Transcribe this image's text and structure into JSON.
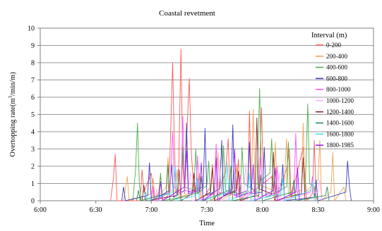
{
  "chart_data": {
    "type": "line",
    "title": "Coastal revetment",
    "xlabel": "Time",
    "ylabel": "Overtopping rate(m³/min/m)",
    "ylabel_parts": {
      "pre": "Overtopping rate(m",
      "sup": "3",
      "post": "/min/m)"
    },
    "xlim_minutes": [
      0,
      180
    ],
    "x_ticks": [
      "6:00",
      "6:30",
      "7:00",
      "7:30",
      "8:00",
      "8:30",
      "9:00"
    ],
    "ylim": [
      0,
      10
    ],
    "y_ticks": [
      "0",
      "1",
      "2",
      "3",
      "4",
      "5",
      "6",
      "7",
      "8",
      "9",
      "10"
    ],
    "grid": "horizontal",
    "legend_title": "Interval (m)",
    "legend_position": "right",
    "series": [
      {
        "name": "0-200",
        "color": "#ff5a5a",
        "points": [
          [
            38,
            0
          ],
          [
            39.5,
            1.3
          ],
          [
            40.5,
            2.7
          ],
          [
            41.5,
            0
          ],
          [
            54,
            0
          ],
          [
            55,
            1.8
          ],
          [
            56,
            0.5
          ],
          [
            60,
            1.6
          ],
          [
            61.5,
            0
          ],
          [
            64,
            0.5
          ],
          [
            65,
            1.5
          ],
          [
            66,
            0
          ],
          [
            69,
            0.3
          ],
          [
            70,
            2.5
          ],
          [
            71.5,
            8.0
          ],
          [
            72.5,
            3
          ],
          [
            73.5,
            0.3
          ],
          [
            74.5,
            0.5
          ],
          [
            76,
            8.8
          ],
          [
            77,
            2
          ],
          [
            78,
            0.4
          ],
          [
            79,
            3.5
          ],
          [
            80.5,
            7.1
          ],
          [
            81.5,
            3
          ],
          [
            83,
            0.5
          ],
          [
            86,
            1.4
          ],
          [
            87,
            0
          ],
          [
            92,
            0.8
          ],
          [
            93,
            2.1
          ],
          [
            94,
            0
          ],
          [
            100,
            1.6
          ],
          [
            101.5,
            3.6
          ],
          [
            102.5,
            0.3
          ],
          [
            106,
            0.8
          ],
          [
            107,
            2.4
          ],
          [
            108,
            0
          ],
          [
            112,
            0.5
          ],
          [
            113,
            5.2
          ],
          [
            114,
            0.8
          ],
          [
            118,
            0.2
          ],
          [
            119.5,
            5.4
          ],
          [
            120.5,
            1
          ],
          [
            125,
            1.4
          ],
          [
            126.5,
            0
          ],
          [
            133,
            1.8
          ],
          [
            134.5,
            3
          ],
          [
            135.5,
            0.2
          ],
          [
            142,
            3.1
          ],
          [
            143,
            1.4
          ],
          [
            144,
            0
          ],
          [
            147,
            0.4
          ],
          [
            148,
            3.5
          ],
          [
            149,
            0.3
          ],
          [
            150,
            0
          ]
        ]
      },
      {
        "name": "200-400",
        "color": "#f2a556",
        "points": [
          [
            45,
            0
          ],
          [
            47,
            1.4
          ],
          [
            48,
            0
          ],
          [
            60,
            0.4
          ],
          [
            61,
            1.3
          ],
          [
            62,
            0
          ],
          [
            68,
            0.8
          ],
          [
            69,
            2.5
          ],
          [
            70,
            0.6
          ],
          [
            73,
            0.5
          ],
          [
            74,
            1.8
          ],
          [
            75,
            0.2
          ],
          [
            85,
            0.6
          ],
          [
            86,
            1.6
          ],
          [
            87,
            0.2
          ],
          [
            95,
            0.5
          ],
          [
            96,
            2.8
          ],
          [
            97,
            0
          ],
          [
            105,
            0.5
          ],
          [
            106,
            2.1
          ],
          [
            107,
            0.3
          ],
          [
            114,
            0.6
          ],
          [
            115,
            5.3
          ],
          [
            116,
            1
          ],
          [
            126,
            0.6
          ],
          [
            127,
            3.4
          ],
          [
            128,
            0.2
          ],
          [
            132,
            1.2
          ],
          [
            133,
            3.6
          ],
          [
            134,
            0.4
          ],
          [
            141,
            0.6
          ],
          [
            142,
            4.5
          ],
          [
            143,
            0.5
          ],
          [
            150,
            1.2
          ],
          [
            151,
            3.5
          ],
          [
            152,
            0
          ],
          [
            157,
            0.5
          ],
          [
            158,
            2.8
          ],
          [
            159,
            0
          ],
          [
            164,
            0.8
          ],
          [
            165,
            0
          ]
        ]
      },
      {
        "name": "400-600",
        "color": "#4cb04a",
        "points": [
          [
            50,
            0
          ],
          [
            51.5,
            1.8
          ],
          [
            52.5,
            4.5
          ],
          [
            53.5,
            1
          ],
          [
            54.5,
            0
          ],
          [
            64,
            0.3
          ],
          [
            65,
            1.6
          ],
          [
            66,
            0
          ],
          [
            76,
            0.2
          ],
          [
            77,
            3.1
          ],
          [
            78,
            0.8
          ],
          [
            83,
            0.6
          ],
          [
            84,
            3.0
          ],
          [
            85,
            0.4
          ],
          [
            90,
            0.9
          ],
          [
            91,
            2.3
          ],
          [
            92,
            0
          ],
          [
            98,
            0.5
          ],
          [
            99,
            3.2
          ],
          [
            100,
            0.6
          ],
          [
            108,
            0.4
          ],
          [
            109,
            3.1
          ],
          [
            110,
            1
          ],
          [
            117,
            0.5
          ],
          [
            118.5,
            6.5
          ],
          [
            119.5,
            1.2
          ],
          [
            124,
            1.6
          ],
          [
            125,
            3.6
          ],
          [
            126,
            0.4
          ],
          [
            133,
            0.8
          ],
          [
            134,
            3.4
          ],
          [
            135,
            0.3
          ],
          [
            143,
            0.4
          ],
          [
            144.5,
            5.6
          ],
          [
            145.5,
            1
          ],
          [
            148,
            0.8
          ],
          [
            149,
            0
          ]
        ]
      },
      {
        "name": "600-800",
        "color": "#3b3fbf",
        "points": [
          [
            44,
            0
          ],
          [
            45,
            0.8
          ],
          [
            46,
            0
          ],
          [
            58,
            0.3
          ],
          [
            59,
            2.2
          ],
          [
            60,
            0
          ],
          [
            70,
            0.6
          ],
          [
            71,
            2.1
          ],
          [
            72,
            0.2
          ],
          [
            78,
            0.6
          ],
          [
            79,
            4.5
          ],
          [
            80,
            0.5
          ],
          [
            88,
            0.8
          ],
          [
            89,
            4.2
          ],
          [
            90,
            0.3
          ],
          [
            97,
            0.7
          ],
          [
            98,
            3.5
          ],
          [
            99,
            0.3
          ],
          [
            103,
            0.5
          ],
          [
            104,
            4.4
          ],
          [
            105,
            0.3
          ],
          [
            112,
            0.6
          ],
          [
            113,
            3.4
          ],
          [
            114,
            0.4
          ],
          [
            120,
            0.5
          ],
          [
            121,
            3.1
          ],
          [
            122,
            0.2
          ],
          [
            130,
            0.6
          ],
          [
            131,
            2.1
          ],
          [
            132,
            0
          ],
          [
            148,
            0.2
          ],
          [
            149,
            1.2
          ],
          [
            150,
            0
          ],
          [
            165,
            0.5
          ],
          [
            166,
            2.3
          ],
          [
            167,
            0.8
          ],
          [
            168,
            0
          ]
        ]
      },
      {
        "name": "800-1000",
        "color": "#ff55ff",
        "points": [
          [
            60,
            0
          ],
          [
            61,
            0.8
          ],
          [
            62,
            0
          ],
          [
            70,
            0.5
          ],
          [
            71.5,
            4.0
          ],
          [
            72.5,
            0.8
          ],
          [
            76,
            0.4
          ],
          [
            77,
            4.9
          ],
          [
            78,
            0.6
          ],
          [
            84,
            0.5
          ],
          [
            85,
            2.6
          ],
          [
            86,
            0
          ],
          [
            94,
            0.4
          ],
          [
            95,
            3.3
          ],
          [
            96,
            0.5
          ],
          [
            107,
            0.3
          ],
          [
            108,
            1.5
          ],
          [
            109,
            0
          ],
          [
            118,
            0.8
          ],
          [
            119,
            2.5
          ],
          [
            120,
            0.3
          ],
          [
            127,
            0.4
          ],
          [
            128,
            2.0
          ],
          [
            129,
            0
          ],
          [
            137,
            0.5
          ],
          [
            138,
            3.9
          ],
          [
            139,
            0.3
          ],
          [
            146,
            0.5
          ],
          [
            147,
            1.4
          ],
          [
            148,
            0
          ]
        ]
      },
      {
        "name": "1000-1200",
        "color": "#f6b8ff",
        "points": [
          [
            62,
            0
          ],
          [
            63,
            0.7
          ],
          [
            64,
            0
          ],
          [
            80,
            0.6
          ],
          [
            81,
            1.7
          ],
          [
            82,
            0
          ],
          [
            96,
            0.3
          ],
          [
            97,
            2.4
          ],
          [
            98,
            0
          ],
          [
            110,
            0.4
          ],
          [
            111,
            2.2
          ],
          [
            112,
            0
          ],
          [
            128,
            0.5
          ],
          [
            129,
            1.6
          ],
          [
            130,
            0
          ],
          [
            150,
            0.5
          ],
          [
            151,
            1.2
          ],
          [
            152,
            0
          ]
        ]
      },
      {
        "name": "1200-1400",
        "color": "#8a2c2c",
        "points": [
          [
            55,
            0
          ],
          [
            56,
            0.9
          ],
          [
            57,
            0
          ],
          [
            74,
            0.3
          ],
          [
            75,
            1.8
          ],
          [
            76,
            0
          ],
          [
            82,
            0.4
          ],
          [
            83,
            1.6
          ],
          [
            84,
            0
          ],
          [
            92,
            0.5
          ],
          [
            93,
            1.9
          ],
          [
            94,
            0
          ],
          [
            106,
            0.6
          ],
          [
            107,
            1.7
          ],
          [
            108,
            0
          ],
          [
            116,
            0.3
          ],
          [
            117,
            4.8
          ],
          [
            118,
            0.7
          ],
          [
            125,
            0.4
          ],
          [
            126,
            2.8
          ],
          [
            127,
            0
          ],
          [
            141,
            0.4
          ],
          [
            142,
            2.5
          ],
          [
            143,
            0
          ]
        ]
      },
      {
        "name": "1400-1600",
        "color": "#2e8b57",
        "points": [
          [
            52,
            0
          ],
          [
            53,
            0.6
          ],
          [
            54,
            0
          ],
          [
            68,
            0.4
          ],
          [
            69,
            2.1
          ],
          [
            70,
            0
          ],
          [
            86,
            0.5
          ],
          [
            87,
            1.4
          ],
          [
            88,
            0
          ],
          [
            102,
            0.6
          ],
          [
            103,
            2.0
          ],
          [
            104,
            0
          ],
          [
            118,
            0.3
          ],
          [
            119,
            1.5
          ],
          [
            120,
            0
          ],
          [
            136,
            0.5
          ],
          [
            137,
            1.2
          ],
          [
            138,
            0
          ],
          [
            154,
            0.3
          ],
          [
            155,
            0.8
          ],
          [
            156,
            0
          ]
        ]
      },
      {
        "name": "1600-1800",
        "color": "#44e0ee",
        "points": [
          [
            56,
            0
          ],
          [
            57,
            0.5
          ],
          [
            58,
            0
          ],
          [
            72,
            0.5
          ],
          [
            73,
            2.0
          ],
          [
            74,
            0
          ],
          [
            84,
            0.3
          ],
          [
            85,
            1.3
          ],
          [
            86,
            0
          ],
          [
            100,
            0.4
          ],
          [
            101,
            2.2
          ],
          [
            102,
            0
          ],
          [
            112,
            0.5
          ],
          [
            113,
            1.6
          ],
          [
            114,
            0
          ],
          [
            130,
            0.4
          ],
          [
            131,
            1.3
          ],
          [
            132,
            0
          ],
          [
            146,
            0.6
          ],
          [
            147,
            1.1
          ],
          [
            148,
            0
          ]
        ]
      },
      {
        "name": "1800-1985",
        "color": "#a020f0",
        "points": [
          [
            64,
            0
          ],
          [
            65,
            1.1
          ],
          [
            66,
            0
          ],
          [
            78,
            0.8
          ],
          [
            79,
            2.9
          ],
          [
            80,
            0.4
          ],
          [
            86,
            0.6
          ],
          [
            87,
            2.2
          ],
          [
            88,
            0
          ],
          [
            94,
            0.5
          ],
          [
            95,
            2.5
          ],
          [
            96,
            0
          ],
          [
            104,
            0.7
          ],
          [
            105,
            3.0
          ],
          [
            106,
            0.2
          ],
          [
            114,
            0.5
          ],
          [
            115,
            2.1
          ],
          [
            116,
            0
          ],
          [
            126,
            0.6
          ],
          [
            127,
            1.9
          ],
          [
            128,
            0
          ],
          [
            138,
            0.5
          ],
          [
            139,
            1.9
          ],
          [
            140,
            0
          ]
        ]
      }
    ]
  }
}
